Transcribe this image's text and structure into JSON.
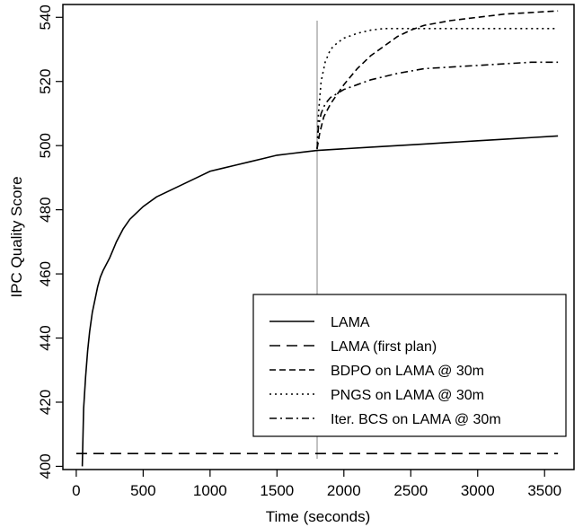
{
  "chart_data": {
    "type": "line",
    "title": "",
    "xlabel": "Time (seconds)",
    "ylabel": "IPC Quality Score",
    "xlim": [
      -100,
      3720
    ],
    "ylim": [
      399,
      544
    ],
    "x_ticks": [
      0,
      500,
      1000,
      1500,
      2000,
      2500,
      3000,
      3500
    ],
    "y_ticks": [
      400,
      420,
      440,
      460,
      480,
      500,
      520,
      540
    ],
    "grid": false,
    "legend_position": "bottom-right",
    "vertical_marker_x": 1800,
    "series": [
      {
        "name": "LAMA",
        "dash": "solid",
        "x": [
          45,
          55,
          70,
          85,
          100,
          120,
          140,
          160,
          180,
          200,
          250,
          300,
          350,
          400,
          450,
          500,
          600,
          700,
          800,
          900,
          1000,
          1100,
          1200,
          1300,
          1400,
          1500,
          1600,
          1700,
          1800,
          2000,
          2200,
          2400,
          2600,
          2800,
          3000,
          3200,
          3400,
          3600
        ],
        "y": [
          400,
          418,
          428,
          436,
          442,
          448,
          452,
          456,
          459,
          461,
          465,
          470,
          474,
          477,
          479,
          481,
          484,
          486,
          488,
          490,
          492,
          493,
          494,
          495,
          496,
          497,
          497.5,
          498,
          498.5,
          499,
          499.5,
          500,
          500.5,
          501,
          501.5,
          502,
          502.5,
          503
        ]
      },
      {
        "name": "LAMA (first plan)",
        "dash": "long-dash",
        "x": [
          0,
          3600
        ],
        "y": [
          404,
          404
        ]
      },
      {
        "name": "BDPO on LAMA @ 30m",
        "dash": "dash",
        "x": [
          1800,
          1820,
          1850,
          1900,
          2000,
          2100,
          2200,
          2300,
          2400,
          2500,
          2600,
          2800,
          3000,
          3200,
          3400,
          3600
        ],
        "y": [
          499,
          504,
          509,
          513,
          519,
          524,
          528,
          531,
          534,
          536,
          537.5,
          539,
          540,
          541,
          541.5,
          542
        ]
      },
      {
        "name": "PNGS on LAMA @ 30m",
        "dash": "dotted",
        "x": [
          1800,
          1810,
          1830,
          1860,
          1900,
          1950,
          2000,
          2100,
          2200,
          2300,
          2400,
          2600,
          2800,
          3000,
          3300,
          3600
        ],
        "y": [
          499,
          510,
          520,
          526,
          530,
          532,
          533.5,
          535,
          536,
          536.5,
          536.5,
          536.5,
          536.5,
          536.5,
          536.5,
          536.5
        ]
      },
      {
        "name": "Iter. BCS on LAMA @ 30m",
        "dash": "dash-dot",
        "x": [
          1800,
          1810,
          1830,
          1860,
          1900,
          2000,
          2100,
          2200,
          2400,
          2600,
          2800,
          3000,
          3200,
          3400,
          3600
        ],
        "y": [
          499,
          506,
          510,
          513,
          515,
          517.5,
          519,
          520.5,
          522.5,
          524,
          524.5,
          525,
          525.5,
          526,
          526
        ]
      }
    ]
  }
}
